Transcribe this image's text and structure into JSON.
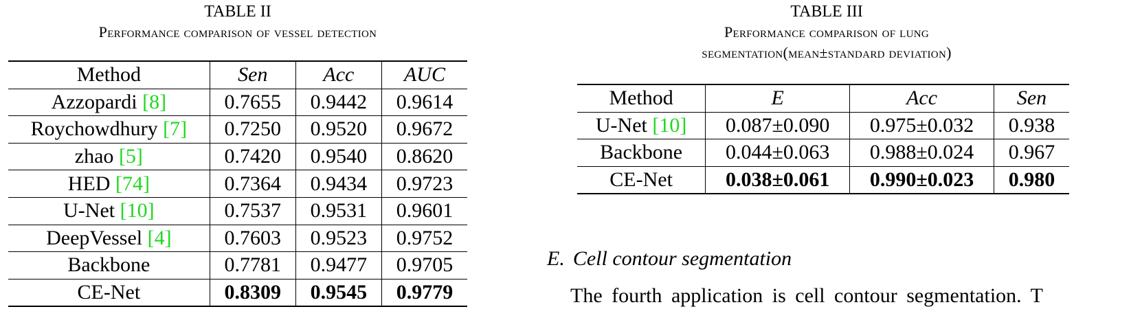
{
  "table2": {
    "label": "TABLE II",
    "title": "Performance comparison of vessel detection",
    "headers": [
      "Method",
      "Sen",
      "Acc",
      "AUC"
    ],
    "rows": [
      {
        "method": "Azzopardi",
        "ref": "[8]",
        "values": [
          "0.7655",
          "0.9442",
          "0.9614"
        ]
      },
      {
        "method": "Roychowdhury",
        "ref": "[7]",
        "values": [
          "0.7250",
          "0.9520",
          "0.9672"
        ]
      },
      {
        "method": "zhao",
        "ref": "[5]",
        "values": [
          "0.7420",
          "0.9540",
          "0.8620"
        ]
      },
      {
        "method": "HED",
        "ref": "[74]",
        "values": [
          "0.7364",
          "0.9434",
          "0.9723"
        ]
      },
      {
        "method": "U-Net",
        "ref": "[10]",
        "values": [
          "0.7537",
          "0.9531",
          "0.9601"
        ]
      },
      {
        "method": "DeepVessel",
        "ref": "[4]",
        "values": [
          "0.7603",
          "0.9523",
          "0.9752"
        ]
      },
      {
        "method": "Backbone",
        "ref": "",
        "values": [
          "0.7781",
          "0.9477",
          "0.9705"
        ]
      },
      {
        "method": "CE-Net",
        "ref": "",
        "values": [
          "0.8309",
          "0.9545",
          "0.9779"
        ],
        "bold": true
      }
    ]
  },
  "table3": {
    "label": "TABLE III",
    "title_line1": "Performance comparison of lung",
    "title_line2": "segmentation(mean±standard deviation)",
    "headers": [
      "Method",
      "E",
      "Acc",
      "Sen"
    ],
    "rows": [
      {
        "method": "U-Net",
        "ref": "[10]",
        "values": [
          "0.087±0.090",
          "0.975±0.032",
          "0.938"
        ]
      },
      {
        "method": "Backbone",
        "ref": "",
        "values": [
          "0.044±0.063",
          "0.988±0.024",
          "0.967"
        ]
      },
      {
        "method": "CE-Net",
        "ref": "",
        "values": [
          "0.038±0.061",
          "0.990±0.023",
          "0.980"
        ],
        "bold": true
      }
    ]
  },
  "section": {
    "number": "E.",
    "title": "Cell contour segmentation"
  },
  "paragraph": {
    "text": "The fourth application is cell contour segmentation. T"
  },
  "colors": {
    "citation": "#1fd81f",
    "text": "#000000"
  }
}
